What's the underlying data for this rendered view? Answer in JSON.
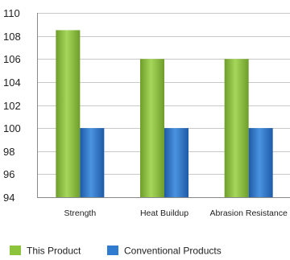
{
  "chart_data": {
    "type": "bar",
    "categories": [
      "Strength",
      "Heat Buildup",
      "Abrasion Resistance"
    ],
    "series": [
      {
        "name": "This Product",
        "values": [
          108.5,
          106,
          106
        ],
        "color": "#8cc43c"
      },
      {
        "name": "Conventional Products",
        "values": [
          100,
          100,
          100
        ],
        "color": "#2e7bcf"
      }
    ],
    "ylim": [
      94,
      110
    ],
    "yticks": [
      94,
      96,
      98,
      100,
      102,
      104,
      106,
      108,
      110
    ],
    "grid": true,
    "legend_position": "bottom-left"
  }
}
